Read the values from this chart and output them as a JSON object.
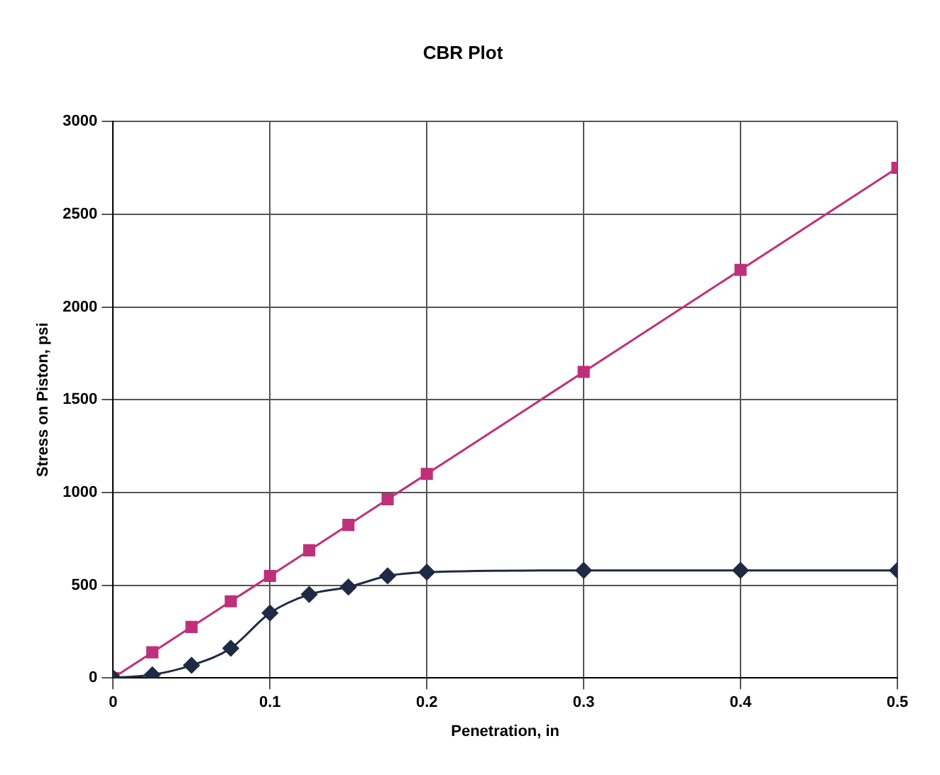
{
  "chart_data": {
    "type": "line",
    "title": "CBR Plot",
    "xlabel": "Penetration, in",
    "ylabel": "Stress on Piston, psi",
    "x": [
      0,
      0.025,
      0.05,
      0.075,
      0.1,
      0.125,
      0.15,
      0.175,
      0.2,
      0.3,
      0.4,
      0.5
    ],
    "series": [
      {
        "color": "#1f2a44",
        "marker": "diamond",
        "values": [
          0,
          17,
          68,
          160,
          350,
          450,
          490,
          550,
          570,
          580,
          580,
          580
        ]
      },
      {
        "color": "#c0307a",
        "marker": "square",
        "values": [
          0,
          138,
          275,
          413,
          550,
          688,
          825,
          963,
          1100,
          1650,
          2200,
          2750
        ]
      }
    ],
    "xlim": [
      0,
      0.5
    ],
    "xticks": [
      0,
      0.1,
      0.2,
      0.3,
      0.4,
      0.5
    ],
    "ylim": [
      0,
      3000
    ],
    "yticks": [
      0,
      500,
      1000,
      1500,
      2000,
      2500,
      3000
    ],
    "grid": true,
    "legend": false,
    "line_style": "solid"
  }
}
